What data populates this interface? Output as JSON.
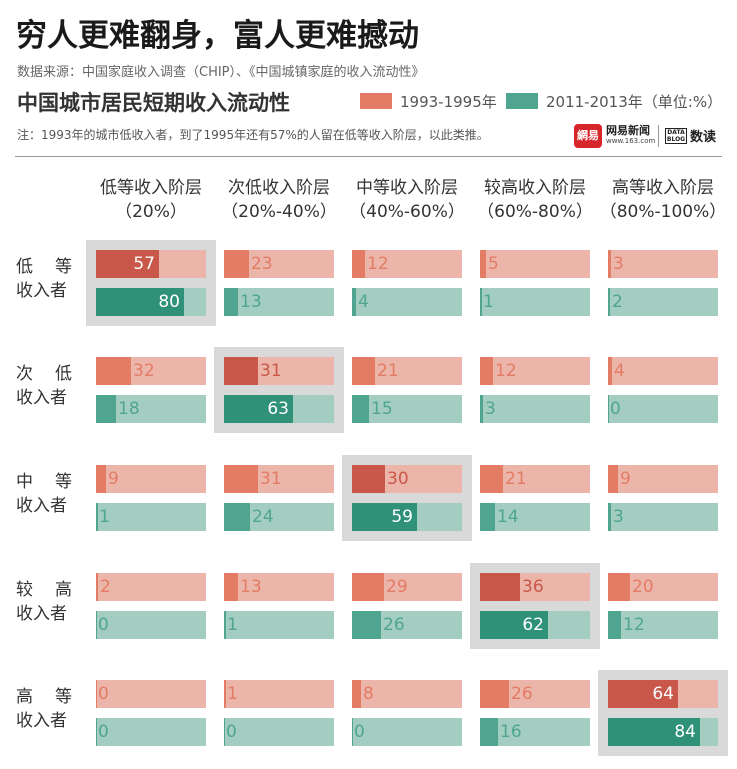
{
  "header": {
    "main_title": "穷人更难翻身，富人更难撼动",
    "source": "数据来源：中国家庭收入调查（CHIP）、《中国城镇家庭的收入流动性》",
    "chart_title": "中国城市居民短期收入流动性",
    "note": "注：1993年的城市低收入者，到了1995年还有57%的人留在低等收入阶层，以此类推。",
    "logo_netease": "网易新闻",
    "logo_netease_url": "www.163.com",
    "logo_netease_icon": "網易",
    "logo_data_icon": "DATA BLOG",
    "logo_data": "数读"
  },
  "legend": [
    {
      "label": "1993-1995年",
      "color": "#e47b64"
    },
    {
      "label": "2011-2013年（单位:%）",
      "color": "#4fa590"
    }
  ],
  "colors": {
    "p1_bg": "#ebb5aa",
    "p1_fill": "#e47b64",
    "p1_fill_strong": "#c9574a",
    "p2_bg": "#a3cdc1",
    "p2_fill": "#4fa590",
    "p2_fill_strong": "#2f9278",
    "highlight": "#d9d9d9"
  },
  "chart_data": {
    "type": "bar",
    "title": "中国城市居民短期收入流动性",
    "unit": "%",
    "columns": [
      {
        "name": "低等收入阶层",
        "range": "（20%）"
      },
      {
        "name": "次低收入阶层",
        "range": "（20%-40%）"
      },
      {
        "name": "中等收入阶层",
        "range": "（40%-60%）"
      },
      {
        "name": "较高收入阶层",
        "range": "（60%-80%）"
      },
      {
        "name": "高等收入阶层",
        "range": "（80%-100%）"
      }
    ],
    "rows": [
      {
        "line1": "低等",
        "line2": "收入者",
        "p1": [
          57,
          23,
          12,
          5,
          3
        ],
        "p2": [
          80,
          13,
          4,
          1,
          2
        ]
      },
      {
        "line1": "次低",
        "line2": "收入者",
        "p1": [
          32,
          31,
          21,
          12,
          4
        ],
        "p2": [
          18,
          63,
          15,
          3,
          0
        ]
      },
      {
        "line1": "中等",
        "line2": "收入者",
        "p1": [
          9,
          31,
          30,
          21,
          9
        ],
        "p2": [
          1,
          24,
          59,
          14,
          3
        ]
      },
      {
        "line1": "较高",
        "line2": "收入者",
        "p1": [
          2,
          13,
          29,
          36,
          20
        ],
        "p2": [
          0,
          1,
          26,
          62,
          12
        ]
      },
      {
        "line1": "高等",
        "line2": "收入者",
        "p1": [
          0,
          1,
          8,
          26,
          64
        ],
        "p2": [
          0,
          0,
          0,
          16,
          84
        ]
      }
    ],
    "series": [
      {
        "name": "1993-1995年"
      },
      {
        "name": "2011-2013年"
      }
    ],
    "xlim": [
      0,
      100
    ]
  }
}
